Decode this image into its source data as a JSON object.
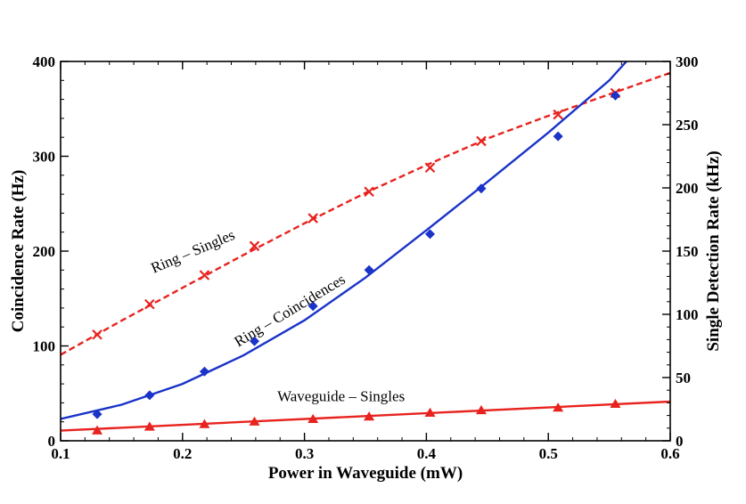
{
  "chart_data": {
    "type": "scatter",
    "xlabel": "Power in Waveguide (mW)",
    "ylabel": "Coincidence Rate (Hz)",
    "y2label": "Single Detection Rate (kHz)",
    "xlim": [
      0.1,
      0.6
    ],
    "ylim": [
      0,
      400
    ],
    "y2lim": [
      0,
      300
    ],
    "x_ticks": [
      "0.1",
      "0.2",
      "0.3",
      "0.4",
      "0.5",
      "0.6"
    ],
    "y_ticks": [
      "0",
      "100",
      "200",
      "300",
      "400"
    ],
    "y2_ticks": [
      "0",
      "50",
      "100",
      "150",
      "200",
      "250",
      "300"
    ],
    "grid": false,
    "series": [
      {
        "name": "Ring – Singles",
        "axis": "right",
        "color": "#e8231f",
        "marker": "x",
        "line_style": "dashed",
        "x": [
          0.13,
          0.173,
          0.218,
          0.259,
          0.307,
          0.353,
          0.403,
          0.445,
          0.508,
          0.555
        ],
        "y": [
          84,
          108,
          131,
          154,
          176,
          197,
          216,
          237,
          258,
          275
        ],
        "fit_x": [
          0.1,
          0.15,
          0.2,
          0.25,
          0.3,
          0.35,
          0.4,
          0.45,
          0.5,
          0.55,
          0.6
        ],
        "fit_y": [
          68,
          95,
          121,
          147,
          172,
          196,
          218,
          239,
          257,
          274,
          291
        ]
      },
      {
        "name": "Ring – Coincidences",
        "axis": "left",
        "color": "#1a33c8",
        "marker": "diamond",
        "line_style": "solid",
        "x": [
          0.13,
          0.173,
          0.218,
          0.259,
          0.307,
          0.353,
          0.403,
          0.445,
          0.508,
          0.555
        ],
        "y": [
          28,
          48,
          73,
          105,
          142,
          180,
          218,
          266,
          321,
          364
        ],
        "fit_x": [
          0.1,
          0.15,
          0.2,
          0.25,
          0.3,
          0.35,
          0.4,
          0.45,
          0.5,
          0.55,
          0.564
        ],
        "fit_y": [
          23,
          38,
          60,
          90,
          127,
          172,
          222,
          273,
          325,
          380,
          400
        ]
      },
      {
        "name": "Waveguide – Singles",
        "axis": "right",
        "color": "#e8231f",
        "marker": "triangle",
        "line_style": "solid",
        "x": [
          0.13,
          0.173,
          0.218,
          0.259,
          0.307,
          0.353,
          0.403,
          0.445,
          0.508,
          0.555
        ],
        "y": [
          8,
          11,
          13,
          15,
          17,
          19,
          22,
          24,
          26,
          29
        ],
        "fit_x": [
          0.1,
          0.6
        ],
        "fit_y": [
          8,
          31
        ]
      }
    ],
    "annotations": [
      {
        "text": "Ring – Singles",
        "x": 0.21,
        "y": 195,
        "angle": -23
      },
      {
        "text": "Ring – Coincidences",
        "x": 0.29,
        "y": 133,
        "angle": -31
      },
      {
        "text": "Waveguide – Singles",
        "x": 0.33,
        "y": 42,
        "angle": 0
      }
    ]
  }
}
